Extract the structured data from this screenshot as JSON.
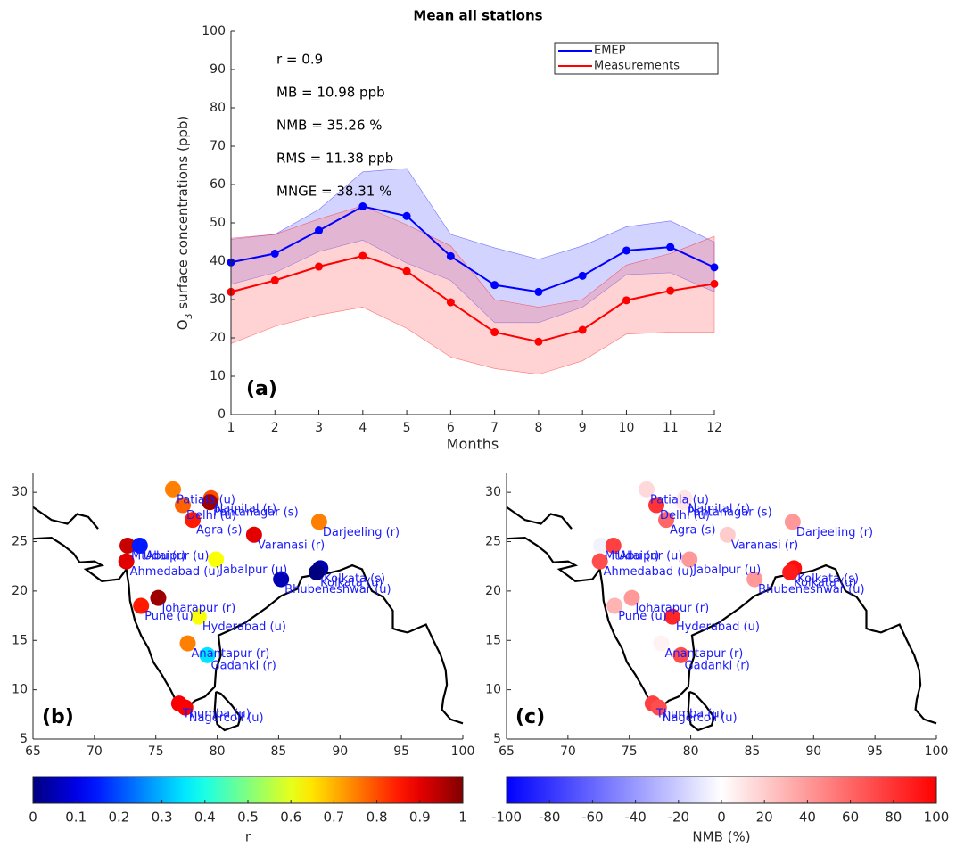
{
  "chart_data": [
    {
      "type": "line-band",
      "title": "Mean all stations",
      "ylabel": [
        "O",
        "3",
        " surface concentrations (ppb)"
      ],
      "xlabel": "Months",
      "x": [
        1,
        2,
        3,
        4,
        5,
        6,
        7,
        8,
        9,
        10,
        11,
        12
      ],
      "xlim": [
        1,
        12
      ],
      "xticks": [
        1,
        2,
        3,
        4,
        5,
        6,
        7,
        8,
        9,
        10,
        11,
        12
      ],
      "ylim": [
        0,
        100
      ],
      "yticks": [
        0,
        10,
        20,
        30,
        40,
        50,
        60,
        70,
        80,
        90,
        100
      ],
      "annotations": [
        "r = 0.9",
        "MB = 10.98 ppb",
        "NMB = 35.26 %",
        "RMS = 11.38 ppb",
        "MNGE = 38.31 %"
      ],
      "panel_label": "(a)",
      "legend": "top-right",
      "series": [
        {
          "name": "EMEP",
          "color": "#0000ff",
          "band_color": "#8080ff",
          "values": [
            39.7,
            42,
            48,
            54.3,
            51.8,
            41.3,
            33.8,
            32,
            36.2,
            42.8,
            43.7,
            38.4
          ],
          "band_upper": [
            45.7,
            47,
            53.5,
            63.3,
            64.2,
            47,
            43.5,
            40.5,
            44,
            49,
            50.5,
            45
          ],
          "band_lower": [
            34,
            37,
            42.5,
            45.5,
            39.5,
            35,
            24,
            24,
            28,
            36.5,
            37,
            32
          ]
        },
        {
          "name": "Measurements",
          "color": "#ff0000",
          "band_color": "#ff8080",
          "values": [
            32,
            35,
            38.6,
            41.4,
            37.4,
            29.3,
            21.5,
            19,
            22.1,
            29.8,
            32.3,
            34.1
          ],
          "band_upper": [
            46,
            47,
            51,
            54.5,
            49.5,
            44,
            30,
            28,
            30,
            39,
            42,
            46.5
          ],
          "band_lower": [
            18.5,
            23,
            26,
            28,
            22.5,
            15,
            12,
            10.5,
            14,
            21,
            21.5,
            21.5
          ]
        }
      ]
    },
    {
      "type": "map-scatter",
      "panel_label": "(b)",
      "xlim": [
        65,
        100
      ],
      "xticks": [
        65,
        70,
        75,
        80,
        85,
        90,
        95,
        100
      ],
      "ylim": [
        5,
        32
      ],
      "yticks": [
        5,
        10,
        15,
        20,
        25,
        30
      ],
      "colormap": "jet",
      "colorbar": {
        "label": "r",
        "lim": [
          0,
          1
        ],
        "ticks": [
          0,
          0.1,
          0.2,
          0.3,
          0.4,
          0.5,
          0.6,
          0.7,
          0.8,
          0.9,
          1
        ]
      },
      "stations": [
        {
          "name": "Patiala (u)",
          "lon": 76.4,
          "lat": 30.3,
          "value": 0.75
        },
        {
          "name": "Nainital (r)",
          "lon": 79.5,
          "lat": 29.4,
          "value": 0.8
        },
        {
          "name": "Pantanagar (s)",
          "lon": 79.4,
          "lat": 29.0,
          "value": 0.97
        },
        {
          "name": "Delhi (u)",
          "lon": 77.2,
          "lat": 28.7,
          "value": 0.78
        },
        {
          "name": "Agra (s)",
          "lon": 78.0,
          "lat": 27.2,
          "value": 0.85
        },
        {
          "name": "Varanasi (r)",
          "lon": 83.0,
          "lat": 25.7,
          "value": 0.9
        },
        {
          "name": "Darjeeling (r)",
          "lon": 88.3,
          "lat": 27.0,
          "value": 0.75
        },
        {
          "name": "MtAbu (r)",
          "lon": 72.7,
          "lat": 24.6,
          "value": 0.93
        },
        {
          "name": "Udaipur (u)",
          "lon": 73.7,
          "lat": 24.6,
          "value": 0.15
        },
        {
          "name": "Ahmedabad (u)",
          "lon": 72.6,
          "lat": 23.0,
          "value": 0.9
        },
        {
          "name": "Jabalpur (u)",
          "lon": 79.9,
          "lat": 23.2,
          "value": 0.62
        },
        {
          "name": "Kolkata (s)",
          "lon": 88.4,
          "lat": 22.3,
          "value": 0.05
        },
        {
          "name": "Kolkata (u)",
          "lon": 88.1,
          "lat": 21.9,
          "value": 0.0
        },
        {
          "name": "Bhubeneshwar (u)",
          "lon": 85.2,
          "lat": 21.2,
          "value": 0.05
        },
        {
          "name": "Joharapur (r)",
          "lon": 75.2,
          "lat": 19.3,
          "value": 0.97
        },
        {
          "name": "Pune (u)",
          "lon": 73.8,
          "lat": 18.5,
          "value": 0.85
        },
        {
          "name": "Hyderabad (u)",
          "lon": 78.5,
          "lat": 17.4,
          "value": 0.62
        },
        {
          "name": "Anantapur (r)",
          "lon": 77.6,
          "lat": 14.7,
          "value": 0.75
        },
        {
          "name": "Gadanki (r)",
          "lon": 79.2,
          "lat": 13.5,
          "value": 0.35
        },
        {
          "name": "Thumba (u)",
          "lon": 76.9,
          "lat": 8.6,
          "value": 0.88
        },
        {
          "name": "Nagercoil (u)",
          "lon": 77.4,
          "lat": 8.2,
          "value": 0.88
        }
      ]
    },
    {
      "type": "map-scatter",
      "panel_label": "(c)",
      "xlim": [
        65,
        100
      ],
      "xticks": [
        65,
        70,
        75,
        80,
        85,
        90,
        95,
        100
      ],
      "ylim": [
        5,
        32
      ],
      "yticks": [
        5,
        10,
        15,
        20,
        25,
        30
      ],
      "colormap": "bwr",
      "colorbar": {
        "label": "NMB (%)",
        "lim": [
          -100,
          100
        ],
        "ticks": [
          -100,
          -80,
          -60,
          -40,
          -20,
          0,
          20,
          40,
          60,
          80,
          100
        ]
      },
      "stations": [
        {
          "name": "Patiala (u)",
          "lon": 76.4,
          "lat": 30.3,
          "value": 15
        },
        {
          "name": "Nainital (r)",
          "lon": 79.5,
          "lat": 29.4,
          "value": 10
        },
        {
          "name": "Pantanagar (s)",
          "lon": 79.4,
          "lat": 29.0,
          "value": 10
        },
        {
          "name": "Delhi (u)",
          "lon": 77.2,
          "lat": 28.7,
          "value": 80
        },
        {
          "name": "Agra (s)",
          "lon": 78.0,
          "lat": 27.2,
          "value": 60
        },
        {
          "name": "Varanasi (r)",
          "lon": 83.0,
          "lat": 25.7,
          "value": 20
        },
        {
          "name": "Darjeeling (r)",
          "lon": 88.3,
          "lat": 27.0,
          "value": 40
        },
        {
          "name": "MtAbu (r)",
          "lon": 72.7,
          "lat": 24.6,
          "value": -5
        },
        {
          "name": "Udaipur (u)",
          "lon": 73.7,
          "lat": 24.6,
          "value": 75
        },
        {
          "name": "Ahmedabad (u)",
          "lon": 72.6,
          "lat": 23.0,
          "value": 70
        },
        {
          "name": "Jabalpur (u)",
          "lon": 79.9,
          "lat": 23.2,
          "value": 40
        },
        {
          "name": "Kolkata (s)",
          "lon": 88.4,
          "lat": 22.3,
          "value": 95
        },
        {
          "name": "Kolkata (u)",
          "lon": 88.1,
          "lat": 21.9,
          "value": 90
        },
        {
          "name": "Bhubeneshwar (u)",
          "lon": 85.2,
          "lat": 21.2,
          "value": 40
        },
        {
          "name": "Joharapur (r)",
          "lon": 75.2,
          "lat": 19.3,
          "value": 40
        },
        {
          "name": "Pune (u)",
          "lon": 73.8,
          "lat": 18.5,
          "value": 30
        },
        {
          "name": "Hyderabad (u)",
          "lon": 78.5,
          "lat": 17.4,
          "value": 85
        },
        {
          "name": "Anantapur (r)",
          "lon": 77.6,
          "lat": 14.7,
          "value": 5
        },
        {
          "name": "Gadanki (r)",
          "lon": 79.2,
          "lat": 13.5,
          "value": 70
        },
        {
          "name": "Thumba (u)",
          "lon": 76.9,
          "lat": 8.6,
          "value": 75
        },
        {
          "name": "Nagercoil (u)",
          "lon": 77.4,
          "lat": 8.2,
          "value": 70
        }
      ]
    }
  ]
}
